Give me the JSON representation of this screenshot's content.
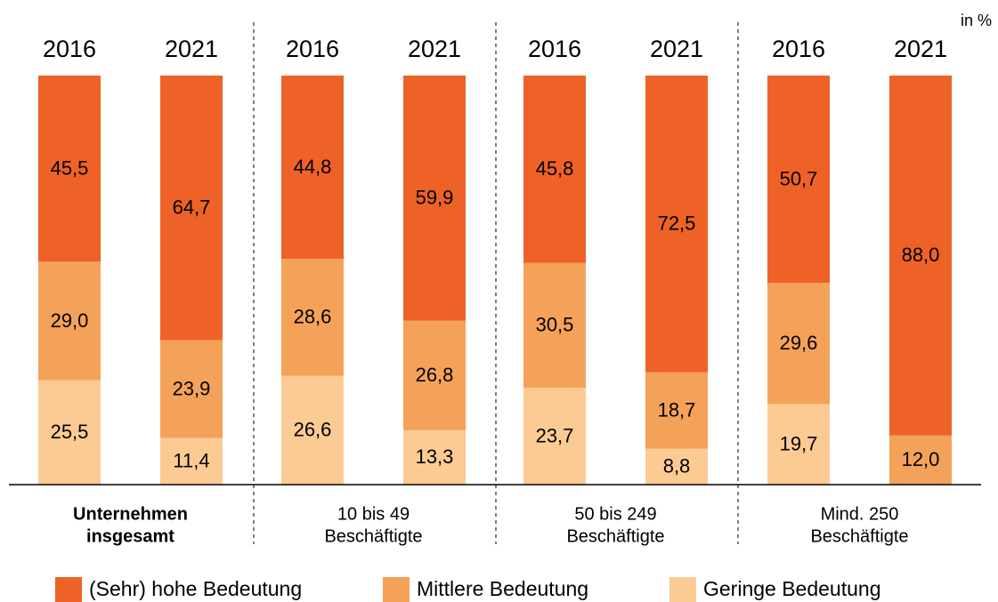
{
  "chart_data": {
    "type": "stacked_bar",
    "unit_label": "in %",
    "categories": [
      "2016",
      "2021",
      "2016",
      "2021",
      "2016",
      "2021",
      "2016",
      "2021"
    ],
    "groups": [
      [
        "Unternehmen",
        "insgesamt"
      ],
      [
        "10 bis 49",
        "Beschäftigte"
      ],
      [
        "50 bis 249",
        "Beschäftigte"
      ],
      [
        "Mind. 250",
        "Beschäftigte"
      ]
    ],
    "ylim": [
      0,
      100
    ],
    "series": [
      {
        "name": "(Sehr) hohe Bedeutung",
        "color": "#ee6227",
        "values": [
          45.5,
          64.7,
          44.8,
          59.9,
          45.8,
          72.5,
          50.7,
          88.0
        ],
        "value_labels": [
          "45,5",
          "64,7",
          "44,8",
          "59,9",
          "45,8",
          "72,5",
          "50,7",
          "88,0"
        ]
      },
      {
        "name": "Mittlere Bedeutung",
        "color": "#f4a259",
        "values": [
          29.0,
          23.9,
          28.6,
          26.8,
          30.5,
          18.7,
          29.6,
          12.0
        ],
        "value_labels": [
          "29,0",
          "23,9",
          "28,6",
          "26,8",
          "30,5",
          "18,7",
          "29,6",
          "12,0"
        ]
      },
      {
        "name": "Geringe Bedeutung",
        "color": "#fccb94",
        "values": [
          25.5,
          11.4,
          26.6,
          13.3,
          23.7,
          8.8,
          19.7,
          null
        ],
        "value_labels": [
          "25,5",
          "11,4",
          "26,6",
          "13,3",
          "23,7",
          "8,8",
          "19,7",
          null
        ]
      }
    ]
  }
}
